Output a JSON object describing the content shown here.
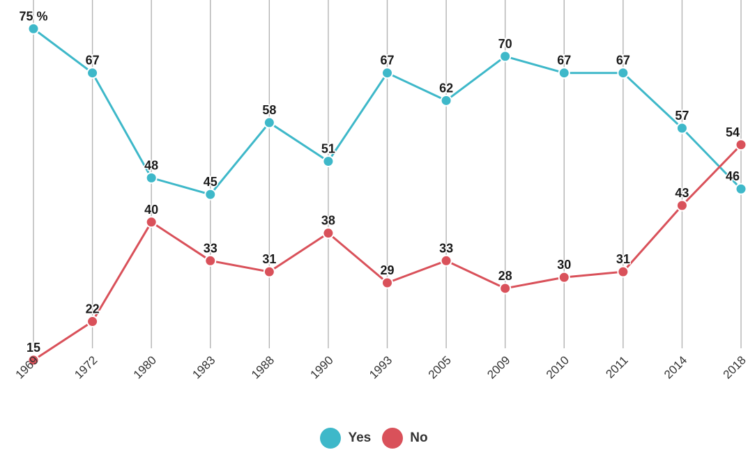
{
  "chart_data": {
    "type": "line",
    "title": "",
    "xlabel": "",
    "ylabel": "",
    "x": [
      "1969",
      "1972",
      "1980",
      "1983",
      "1988",
      "1990",
      "1993",
      "2005",
      "2009",
      "2010",
      "2011",
      "2014",
      "2018"
    ],
    "ylim": [
      0,
      80
    ],
    "grid": "vertical",
    "legend_position": "bottom-center",
    "first_label_suffix": " %",
    "series": [
      {
        "name": "Yes",
        "color": "#3eb8c9",
        "values": [
          75,
          67,
          48,
          45,
          58,
          51,
          67,
          62,
          70,
          67,
          67,
          57,
          46
        ]
      },
      {
        "name": "No",
        "color": "#d9515a",
        "values": [
          15,
          22,
          40,
          33,
          31,
          38,
          29,
          33,
          28,
          30,
          31,
          43,
          54
        ]
      }
    ]
  }
}
